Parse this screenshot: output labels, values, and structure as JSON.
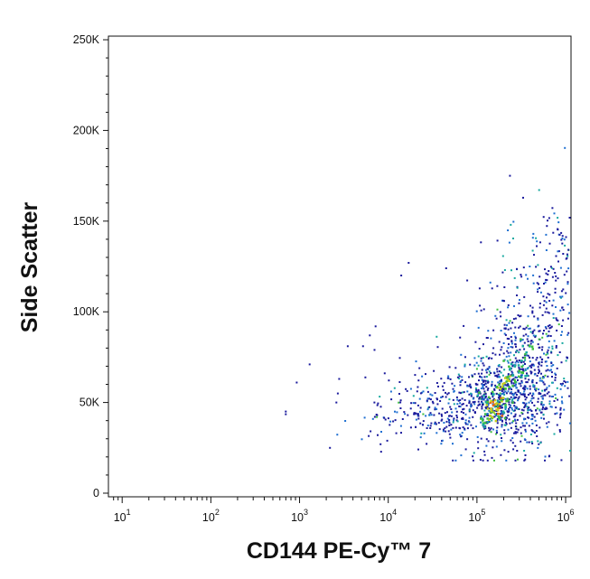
{
  "chart_data": {
    "type": "scatter",
    "title": "",
    "xlabel": "CD144 PE-Cy™ 7",
    "ylabel": "Side Scatter",
    "x_scale": "log",
    "xlim": [
      7,
      1150000
    ],
    "ylim": [
      -2000,
      252000
    ],
    "x_ticks": [
      {
        "base": "10",
        "exp": "1",
        "value": 10
      },
      {
        "base": "10",
        "exp": "2",
        "value": 100
      },
      {
        "base": "10",
        "exp": "3",
        "value": 1000
      },
      {
        "base": "10",
        "exp": "4",
        "value": 10000
      },
      {
        "base": "10",
        "exp": "5",
        "value": 100000
      },
      {
        "base": "10",
        "exp": "6",
        "value": 1000000
      }
    ],
    "y_ticks": [
      {
        "label": "0",
        "value": 0
      },
      {
        "label": "50K",
        "value": 50000
      },
      {
        "label": "100K",
        "value": 100000
      },
      {
        "label": "150K",
        "value": 150000
      },
      {
        "label": "200K",
        "value": 200000
      },
      {
        "label": "250K",
        "value": 250000
      }
    ],
    "grid": false,
    "density_colors": [
      "#1a1a9c",
      "#1e6fd1",
      "#18a9a0",
      "#3fbf3f",
      "#c8cf1c",
      "#e86a16"
    ],
    "sparse_points": [
      {
        "x": 700,
        "y": 45000
      },
      {
        "x": 700,
        "y": 43500
      },
      {
        "x": 930,
        "y": 61000
      },
      {
        "x": 1300,
        "y": 71000
      },
      {
        "x": 2200,
        "y": 25000
      },
      {
        "x": 2600,
        "y": 50000
      },
      {
        "x": 2700,
        "y": 55000
      },
      {
        "x": 2800,
        "y": 63000
      },
      {
        "x": 3500,
        "y": 81000
      },
      {
        "x": 5200,
        "y": 81000
      },
      {
        "x": 6200,
        "y": 87000
      },
      {
        "x": 7000,
        "y": 79000
      },
      {
        "x": 7200,
        "y": 92000
      },
      {
        "x": 14000,
        "y": 120000
      },
      {
        "x": 17000,
        "y": 127000
      },
      {
        "x": 45000,
        "y": 124000
      },
      {
        "x": 7500,
        "y": 43000
      },
      {
        "x": 8200,
        "y": 27000
      },
      {
        "x": 7600,
        "y": 32000
      }
    ],
    "clusters": [
      {
        "cx": 160000,
        "cy": 50000,
        "sx": 0.42,
        "sy": 12000,
        "n": 650
      },
      {
        "cx": 300000,
        "cy": 68000,
        "sx": 0.28,
        "sy": 20000,
        "n": 380
      },
      {
        "cx": 500000,
        "cy": 95000,
        "sx": 0.22,
        "sy": 28000,
        "n": 180
      },
      {
        "cx": 30000,
        "cy": 45000,
        "sx": 0.35,
        "sy": 11000,
        "n": 170
      },
      {
        "cx": 900000,
        "cy": 120000,
        "sx": 0.12,
        "sy": 22000,
        "n": 80
      }
    ],
    "hotspots": [
      {
        "x": 170000,
        "y": 45000,
        "level": 5
      },
      {
        "x": 160000,
        "y": 48000,
        "level": 5
      },
      {
        "x": 185000,
        "y": 52000,
        "level": 4
      },
      {
        "x": 200000,
        "y": 58000,
        "level": 4
      },
      {
        "x": 230000,
        "y": 62000,
        "level": 4
      },
      {
        "x": 150000,
        "y": 42000,
        "level": 4
      },
      {
        "x": 250000,
        "y": 70000,
        "level": 3
      },
      {
        "x": 120000,
        "y": 40000,
        "level": 3
      },
      {
        "x": 300000,
        "y": 66000,
        "level": 3
      },
      {
        "x": 210000,
        "y": 48000,
        "level": 3
      },
      {
        "x": 130000,
        "y": 52000,
        "level": 3
      },
      {
        "x": 350000,
        "y": 80000,
        "level": 3
      }
    ]
  }
}
